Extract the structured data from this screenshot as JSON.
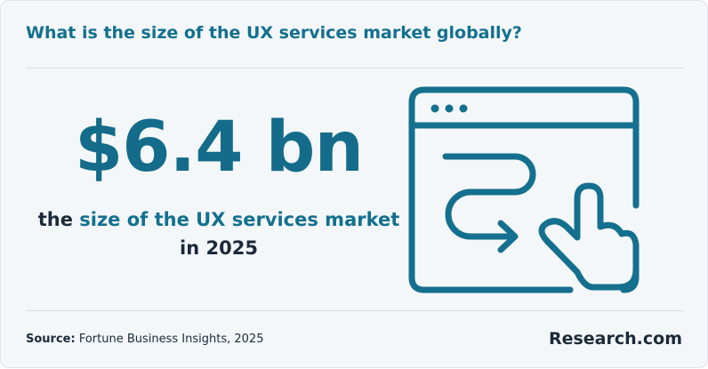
{
  "header": {
    "title": "What is the size of the UX services market globally?"
  },
  "stat": {
    "value": "$6.4 bn",
    "description": {
      "lead": "the",
      "highlight": "size of the UX services market",
      "tail": "in 2025"
    }
  },
  "footer": {
    "source_label": "Source:",
    "source_text": "Fortune Business Insights, 2025",
    "brand": "Research.com"
  }
}
